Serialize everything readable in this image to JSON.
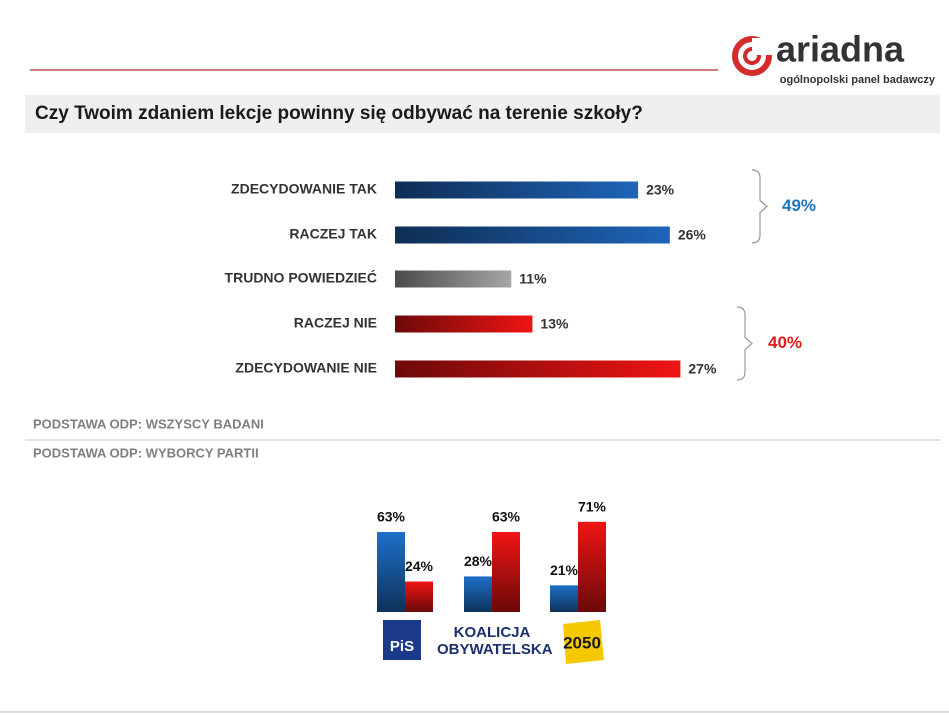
{
  "header": {
    "brand": "ariadna",
    "tagline": "ogólnopolski panel badawczy"
  },
  "chart_data": [
    {
      "type": "hbar",
      "title": "Czy Twoim zdaniem lekcje powinny się odbywać na terenie szkoły?",
      "categories": [
        "ZDECYDOWANIE  TAK",
        "RACZEJ TAK",
        "TRUDNO  POWIEDZIEĆ",
        "RACZEJ NIE",
        "ZDECYDOWANIE  NIE"
      ],
      "values": [
        23,
        26,
        11,
        13,
        27
      ],
      "value_labels": [
        "23%",
        "26%",
        "11%",
        "13%",
        "27%"
      ],
      "colors": [
        "#1e64b8",
        "#1e64b8",
        "#a6a6a6",
        "#f01414",
        "#f01414"
      ],
      "gradient": true,
      "totals": [
        {
          "value": 49,
          "label": "49%",
          "color": "#1f75c4"
        },
        {
          "value": 40,
          "label": "40%",
          "color": "#e31b1b"
        }
      ],
      "note": "PODSTAWA ODP: WSZYSCY BADANI"
    },
    {
      "type": "grouped_bar",
      "note": "PODSTAWA ODP: WYBORCY PARTII",
      "categories": [
        "PiS",
        "KOALICJA OBYWATELSKA",
        "2050"
      ],
      "series": [
        {
          "color": "#1e6fc8",
          "values": [
            63,
            28,
            21
          ],
          "value_labels": [
            "63%",
            "28%",
            "21%"
          ]
        },
        {
          "color": "#f01414",
          "values": [
            24,
            63,
            71
          ],
          "value_labels": [
            "24%",
            "63%",
            "71%"
          ]
        }
      ],
      "gradient": true
    }
  ]
}
